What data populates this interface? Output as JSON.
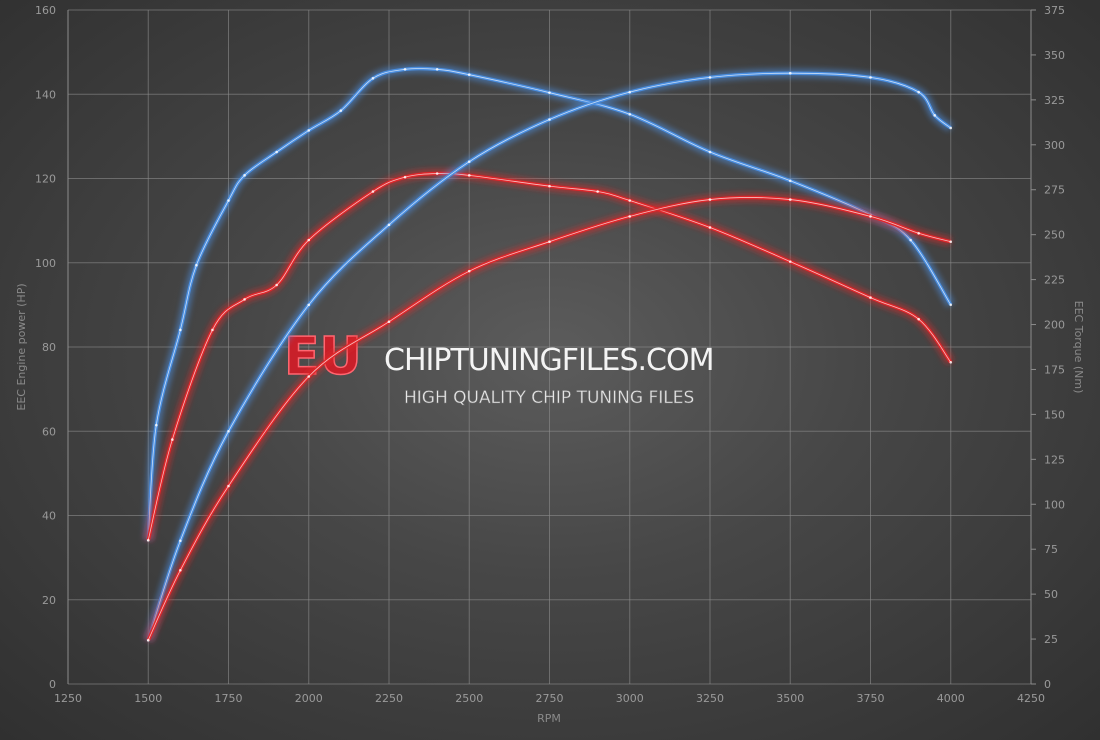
{
  "chart_data": {
    "type": "line",
    "title": "",
    "xlabel": "RPM",
    "ylabel": "EEC Engine power (HP)",
    "y2label": "EEC Torque (Nm)",
    "xlim": [
      1250,
      4250
    ],
    "ylim": [
      0,
      160
    ],
    "y2lim": [
      0,
      375
    ],
    "xticks": [
      1250,
      1500,
      1750,
      2000,
      2250,
      2500,
      2750,
      3000,
      3250,
      3500,
      3750,
      4000,
      4250
    ],
    "yticks": [
      0,
      20,
      40,
      60,
      80,
      100,
      120,
      140,
      160
    ],
    "y2ticks": [
      0,
      25,
      50,
      75,
      100,
      125,
      150,
      175,
      200,
      225,
      250,
      275,
      300,
      325,
      350,
      375
    ],
    "grid": true,
    "legend": "none",
    "colors": {
      "blue": "#4a8ee0",
      "red": "#e0262a"
    },
    "series": [
      {
        "axis": "right",
        "color": "blue",
        "x": [
          1500,
          1525,
          1600,
          1650,
          1750,
          1800,
          1900,
          2000,
          2100,
          2200,
          2300,
          2400,
          2500,
          2750,
          3000,
          3250,
          3500,
          3750,
          3875,
          4000
        ],
        "y": [
          80,
          144,
          197,
          233,
          269,
          283,
          296,
          308,
          319,
          337,
          342,
          342,
          339,
          329,
          317,
          296,
          280,
          261,
          247,
          211
        ]
      },
      {
        "axis": "right",
        "color": "red",
        "x": [
          1500,
          1575,
          1700,
          1800,
          1900,
          2000,
          2200,
          2300,
          2400,
          2500,
          2750,
          2900,
          3000,
          3250,
          3500,
          3750,
          3900,
          4000
        ],
        "y": [
          80,
          136,
          197,
          214,
          222,
          247,
          274,
          282,
          284,
          283,
          277,
          274,
          269,
          254,
          235,
          215,
          203,
          179
        ]
      },
      {
        "axis": "left",
        "color": "blue",
        "x": [
          1500,
          1600,
          1750,
          2000,
          2250,
          2500,
          2750,
          3000,
          3250,
          3500,
          3750,
          3900,
          3950,
          4000
        ],
        "y": [
          10.4,
          34,
          60,
          90,
          109,
          124,
          134,
          140.5,
          144,
          145,
          144,
          140.5,
          135,
          132
        ]
      },
      {
        "axis": "left",
        "color": "red",
        "x": [
          1500,
          1600,
          1750,
          2000,
          2250,
          2500,
          2750,
          3000,
          3250,
          3500,
          3750,
          3900,
          4000
        ],
        "y": [
          10.4,
          27,
          47,
          73,
          86,
          98,
          105,
          111,
          115,
          115,
          111,
          107,
          105
        ]
      }
    ]
  },
  "watermark": {
    "eu": "EU",
    "main": "CHIPTUNINGFILES.COM",
    "sub": "HIGH QUALITY CHIP TUNING FILES"
  }
}
